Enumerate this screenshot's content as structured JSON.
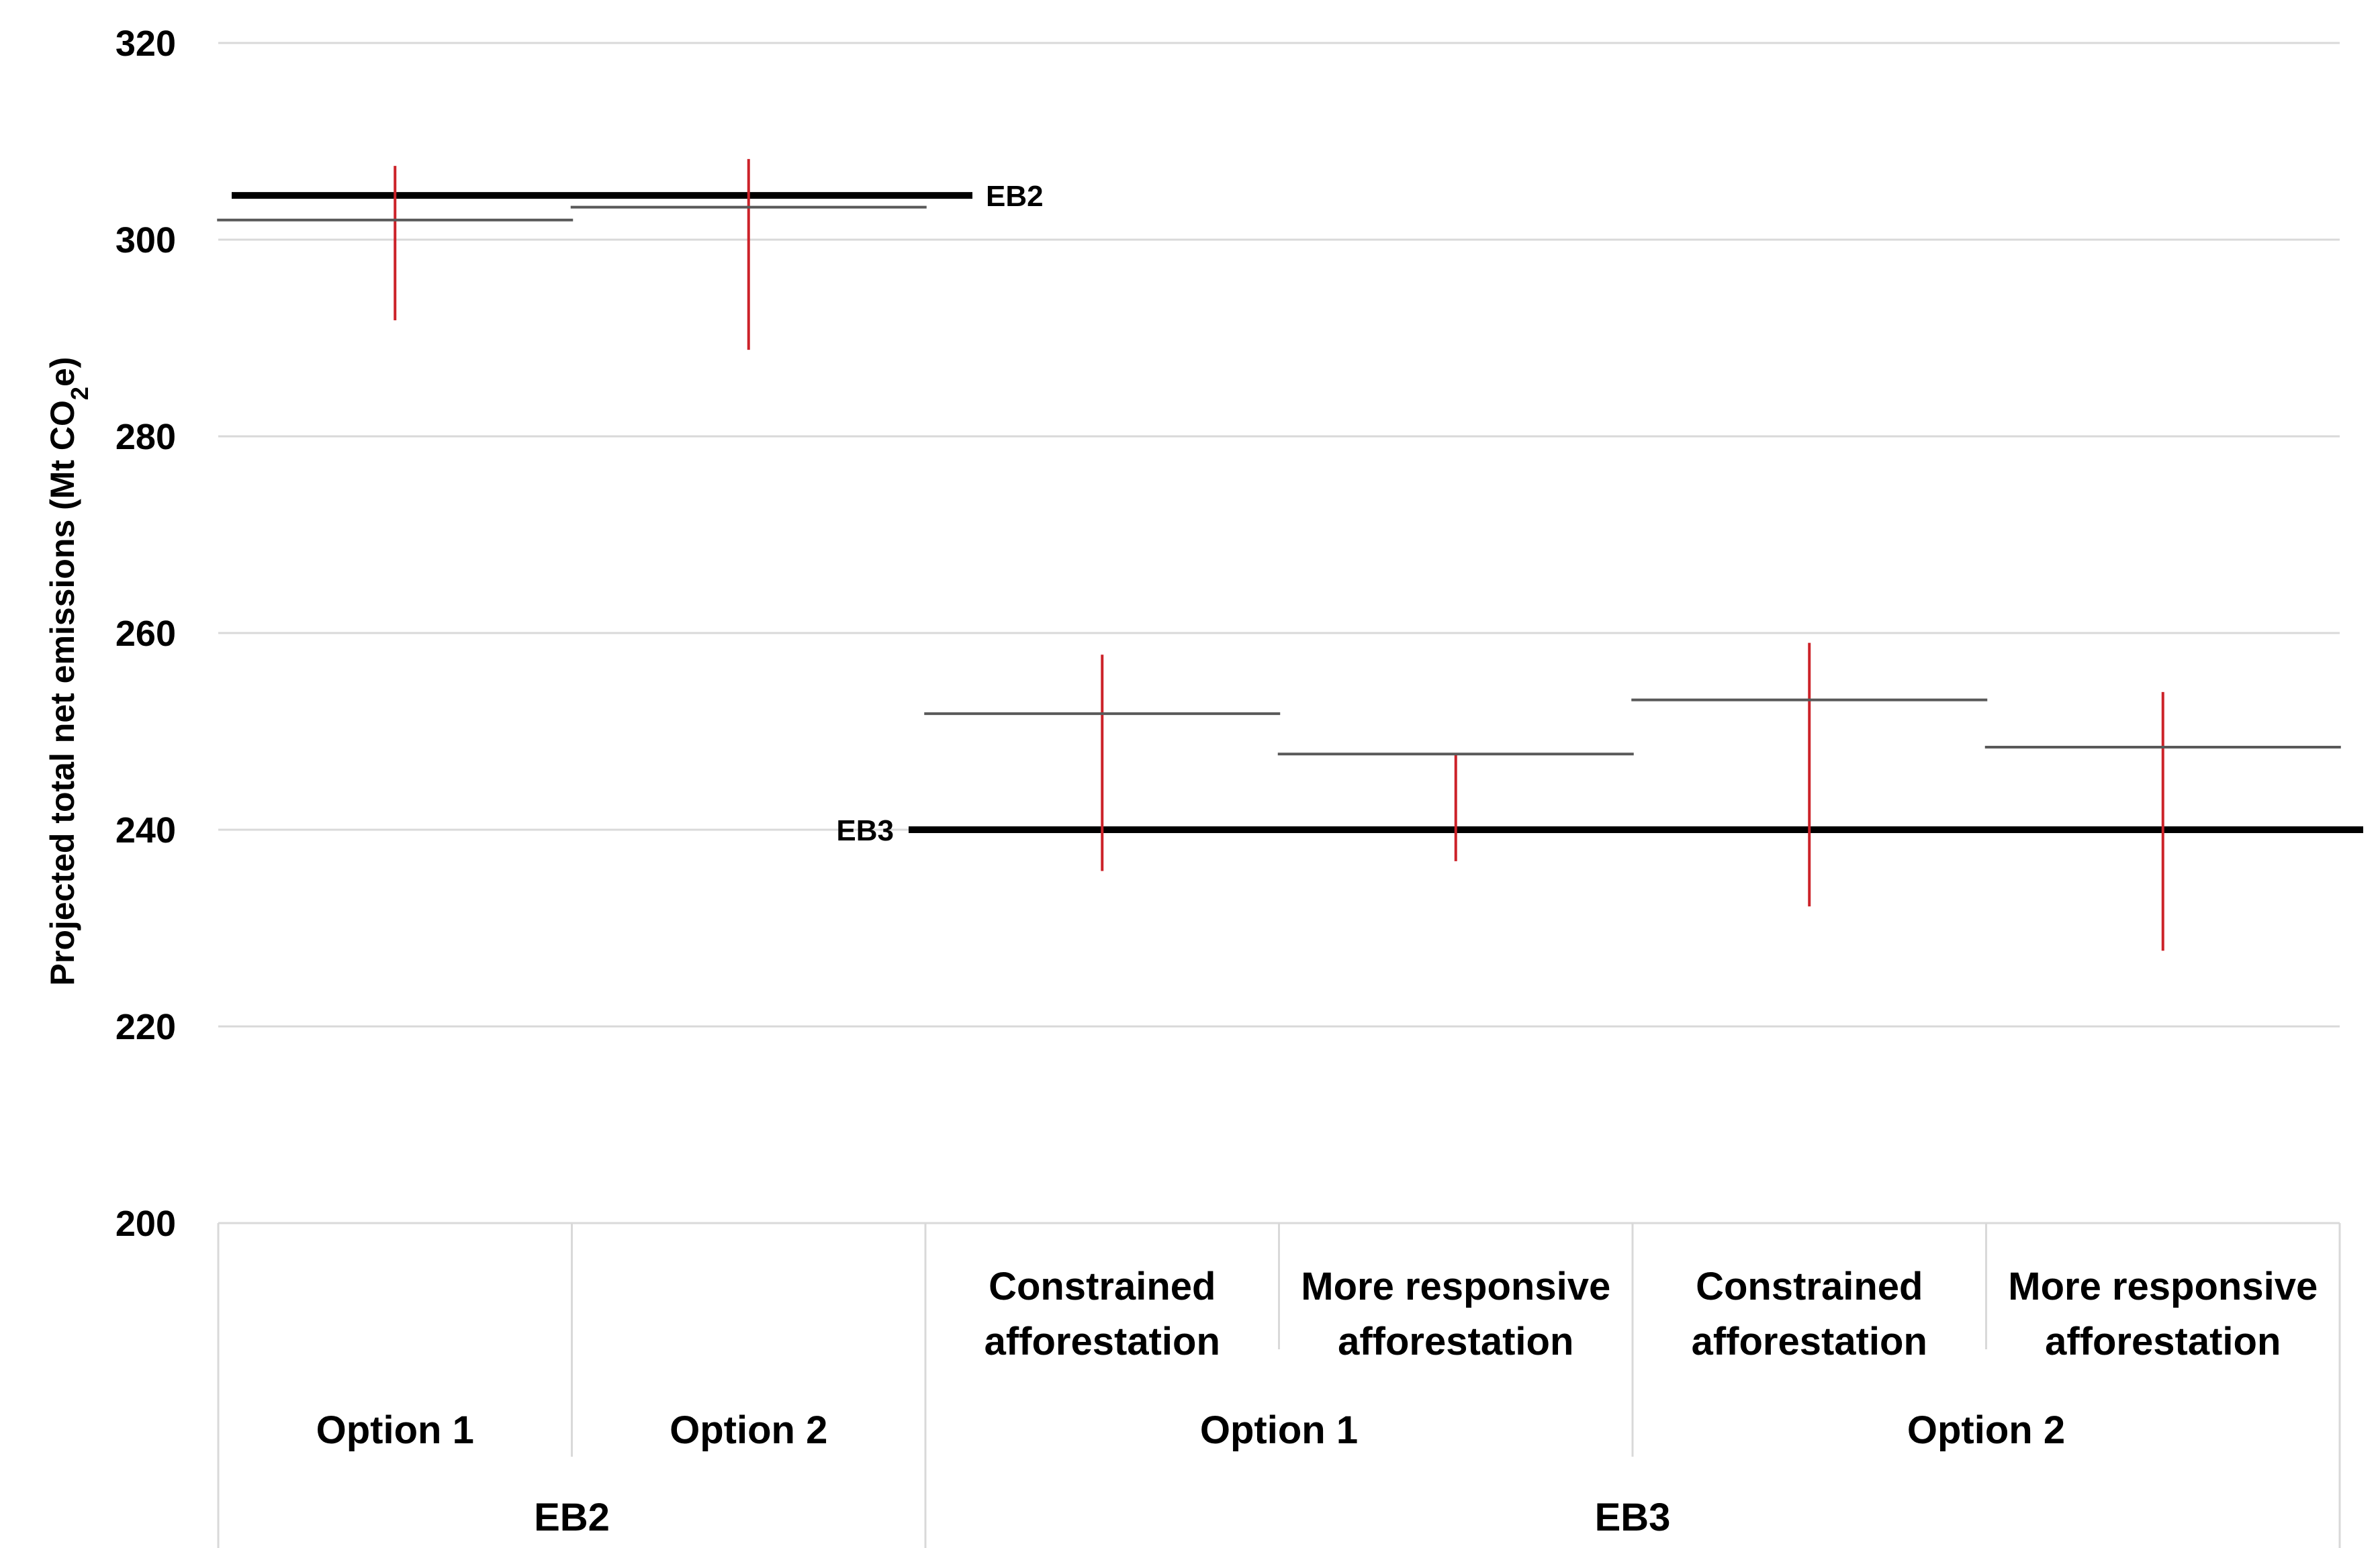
{
  "chart_data": {
    "type": "range",
    "ylabel": "Projected total net emissions (Mt CO2e)",
    "ylabel_parts": [
      "Projected total net emissions (Mt CO",
      "2",
      "e)"
    ],
    "ylim": [
      200,
      320
    ],
    "yticks": [
      200,
      220,
      240,
      260,
      280,
      300,
      320
    ],
    "grid": true,
    "colors": {
      "range": "#cc2229",
      "mid": "#595959",
      "grid": "#d9d9d9",
      "reference": "#000000"
    },
    "categories": [
      {
        "group": "EB2",
        "option": "Option 1",
        "label": "",
        "mid": 302,
        "low": 291.8,
        "high": 307.5
      },
      {
        "group": "EB2",
        "option": "Option 2",
        "label": "",
        "mid": 303.3,
        "low": 288.8,
        "high": 308.2
      },
      {
        "group": "EB3",
        "option": "Option 1",
        "label": "Constrained afforestation",
        "mid": 251.8,
        "low": 235.8,
        "high": 257.8
      },
      {
        "group": "EB3",
        "option": "Option 1",
        "label": "More responsive afforestation",
        "mid": 247.7,
        "low": 236.8,
        "high": 247.7
      },
      {
        "group": "EB3",
        "option": "Option 2",
        "label": "Constrained afforestation",
        "mid": 253.2,
        "low": 232.2,
        "high": 259
      },
      {
        "group": "EB3",
        "option": "Option 2",
        "label": "More responsive afforestation",
        "mid": 248.4,
        "low": 227.7,
        "high": 254
      }
    ],
    "category_labels": [
      [
        "",
        ""
      ],
      [
        "",
        ""
      ],
      [
        "Constrained",
        "afforestation"
      ],
      [
        "More responsive",
        "afforestation"
      ],
      [
        "Constrained",
        "afforestation"
      ],
      [
        "More responsive",
        "afforestation"
      ]
    ],
    "options": [
      {
        "label": "Option 1",
        "from": 0,
        "to": 0
      },
      {
        "label": "Option 2",
        "from": 1,
        "to": 1
      },
      {
        "label": "Option 1",
        "from": 2,
        "to": 3
      },
      {
        "label": "Option 2",
        "from": 4,
        "to": 5
      }
    ],
    "groups": [
      {
        "label": "EB2",
        "from": 0,
        "to": 1
      },
      {
        "label": "EB3",
        "from": 2,
        "to": 5
      }
    ],
    "reference_lines": [
      {
        "label": "EB2",
        "value": 304.5,
        "from_cat": 0,
        "to_cat": 1
      },
      {
        "label": "EB3",
        "value": 240,
        "from_cat": 2,
        "to_cat": 5
      }
    ]
  }
}
